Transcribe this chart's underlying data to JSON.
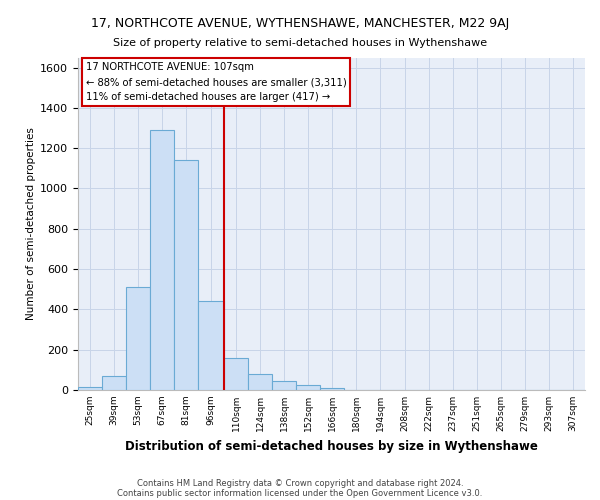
{
  "title_line1": "17, NORTHCOTE AVENUE, WYTHENSHAWE, MANCHESTER, M22 9AJ",
  "title_line2": "Size of property relative to semi-detached houses in Wythenshawe",
  "xlabel": "Distribution of semi-detached houses by size in Wythenshawe",
  "ylabel": "Number of semi-detached properties",
  "footnote1": "Contains HM Land Registry data © Crown copyright and database right 2024.",
  "footnote2": "Contains public sector information licensed under the Open Government Licence v3.0.",
  "annotation_line1": "17 NORTHCOTE AVENUE: 107sqm",
  "annotation_line2": "← 88% of semi-detached houses are smaller (3,311)",
  "annotation_line3": "11% of semi-detached houses are larger (417) →",
  "bar_color": "#ccdff5",
  "bar_edge_color": "#6aaad4",
  "redline_color": "#cc0000",
  "annotation_box_edgecolor": "#cc0000",
  "grid_color": "#c8d4e8",
  "bg_color": "#e8eef8",
  "categories": [
    "25sqm",
    "39sqm",
    "53sqm",
    "67sqm",
    "81sqm",
    "96sqm",
    "110sqm",
    "124sqm",
    "138sqm",
    "152sqm",
    "166sqm",
    "180sqm",
    "194sqm",
    "208sqm",
    "222sqm",
    "237sqm",
    "251sqm",
    "265sqm",
    "279sqm",
    "293sqm",
    "307sqm"
  ],
  "values": [
    15,
    70,
    510,
    1290,
    1140,
    440,
    160,
    80,
    45,
    25,
    12,
    2,
    0,
    0,
    0,
    0,
    0,
    0,
    0,
    0,
    0
  ],
  "bin_edges": [
    18,
    32,
    46,
    60,
    74,
    88,
    103,
    117,
    131,
    145,
    159,
    173,
    187,
    201,
    215,
    229,
    243,
    257,
    271,
    285,
    299,
    313
  ],
  "redline_x": 103,
  "ylim": [
    0,
    1650
  ],
  "yticks": [
    0,
    200,
    400,
    600,
    800,
    1000,
    1200,
    1400,
    1600
  ]
}
